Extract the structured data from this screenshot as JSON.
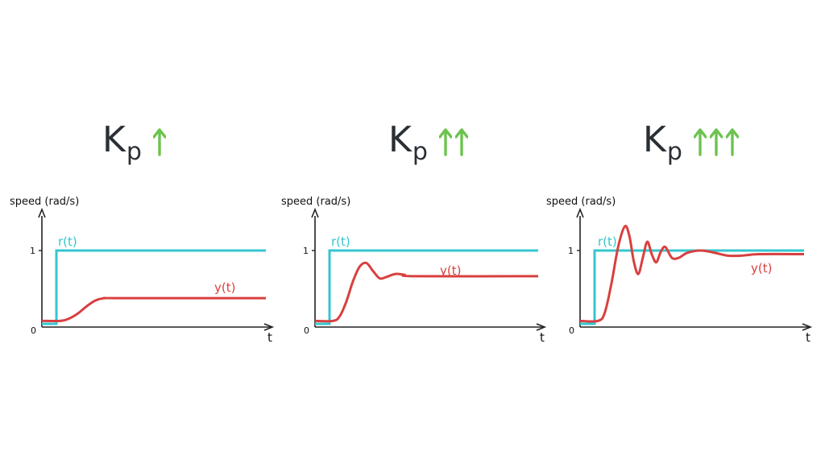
{
  "colors": {
    "reference": "#35c6ce",
    "output": "#d8403f",
    "axis": "#222222",
    "arrow": "#6cc34f",
    "title": "#2a2f35"
  },
  "panels": [
    {
      "title_main": "K",
      "title_sub": "p",
      "arrow_count": 1,
      "ylabel": "speed (rad/s)",
      "xlabel": "t",
      "y_tick_one": "1",
      "origin_label": "0",
      "reference_label": "r(t)",
      "output_label": "y(t)",
      "reference_level": 1,
      "output_final": 0.35,
      "output_points": [
        [
          0,
          0.04
        ],
        [
          0.08,
          0.04
        ],
        [
          0.12,
          0.07
        ],
        [
          0.16,
          0.14
        ],
        [
          0.2,
          0.24
        ],
        [
          0.24,
          0.32
        ],
        [
          0.28,
          0.35
        ],
        [
          0.35,
          0.35
        ],
        [
          1,
          0.35
        ]
      ]
    },
    {
      "title_main": "K",
      "title_sub": "p",
      "arrow_count": 2,
      "ylabel": "speed (rad/s)",
      "xlabel": "t",
      "y_tick_one": "1",
      "origin_label": "0",
      "reference_label": "r(t)",
      "output_label": "y(t)",
      "reference_level": 1,
      "output_final": 0.65,
      "output_points": [
        [
          0,
          0.04
        ],
        [
          0.08,
          0.04
        ],
        [
          0.11,
          0.1
        ],
        [
          0.14,
          0.3
        ],
        [
          0.17,
          0.58
        ],
        [
          0.2,
          0.78
        ],
        [
          0.23,
          0.83
        ],
        [
          0.26,
          0.72
        ],
        [
          0.29,
          0.62
        ],
        [
          0.32,
          0.64
        ],
        [
          0.36,
          0.68
        ],
        [
          0.4,
          0.67
        ],
        [
          0.45,
          0.65
        ],
        [
          1,
          0.65
        ]
      ]
    },
    {
      "title_main": "K",
      "title_sub": "p",
      "arrow_count": 3,
      "ylabel": "speed (rad/s)",
      "xlabel": "t",
      "y_tick_one": "1",
      "origin_label": "0",
      "reference_label": "r(t)",
      "output_label": "y(t)",
      "reference_level": 1,
      "output_final": 0.95,
      "output_points": [
        [
          0,
          0.04
        ],
        [
          0.08,
          0.04
        ],
        [
          0.11,
          0.15
        ],
        [
          0.14,
          0.55
        ],
        [
          0.17,
          1.05
        ],
        [
          0.2,
          1.33
        ],
        [
          0.22,
          1.2
        ],
        [
          0.24,
          0.85
        ],
        [
          0.26,
          0.68
        ],
        [
          0.28,
          0.9
        ],
        [
          0.3,
          1.12
        ],
        [
          0.32,
          0.95
        ],
        [
          0.34,
          0.84
        ],
        [
          0.36,
          0.98
        ],
        [
          0.38,
          1.05
        ],
        [
          0.41,
          0.9
        ],
        [
          0.44,
          0.9
        ],
        [
          0.48,
          0.97
        ],
        [
          0.54,
          1.0
        ],
        [
          0.6,
          0.97
        ],
        [
          0.66,
          0.93
        ],
        [
          0.72,
          0.93
        ],
        [
          0.8,
          0.95
        ],
        [
          1,
          0.95
        ]
      ]
    }
  ]
}
